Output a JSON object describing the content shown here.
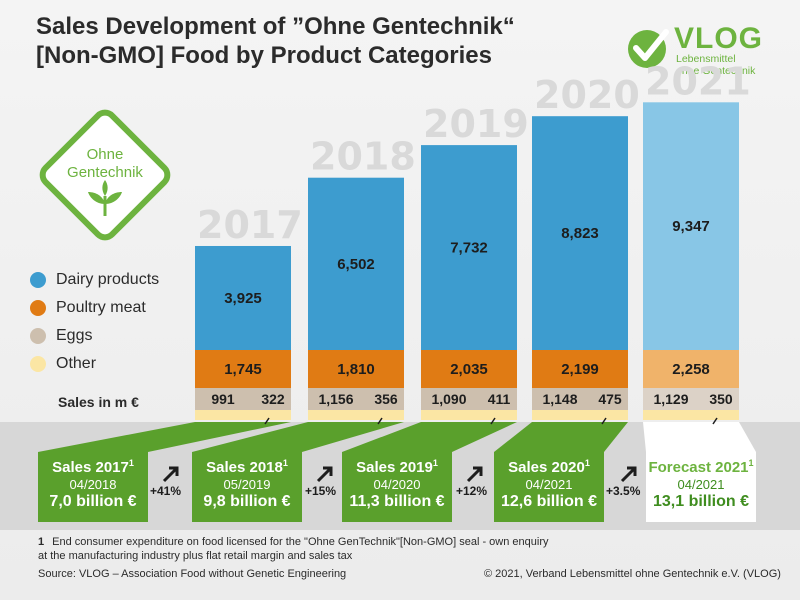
{
  "title": {
    "line1": "Sales Development of ”Ohne Gentechnik“",
    "line2": "[Non-GMO] Food by Product Categories"
  },
  "logo": {
    "name": "VLOG",
    "sub1": "Lebensmittel",
    "sub2": "ohne Gentechnik",
    "icon": "checkmark-icon"
  },
  "seal": {
    "line1": "Ohne",
    "line2": "Gentechnik",
    "icon": "plant-icon"
  },
  "colors": {
    "dairy": "#3d9ccf",
    "dairy_forecast": "#88c6e6",
    "poultry": "#e07b14",
    "poultry_forecast": "#f0b36a",
    "eggs": "#cdbfae",
    "eggs_forecast": "#dcd2c7",
    "other": "#fbe6a4",
    "green": "#5aa02c"
  },
  "unit_label": "Sales in m €",
  "chart_data": {
    "type": "bar",
    "stacked": true,
    "title": "Sales Development of ”Ohne Gentechnik“ [Non-GMO] Food by Product Categories",
    "categories": [
      "2017",
      "2018",
      "2019",
      "2020",
      "2021"
    ],
    "series": [
      {
        "name": "Dairy products",
        "values": [
          3925,
          6502,
          7732,
          8823,
          9347
        ],
        "labels": [
          "3,925",
          "6,502",
          "7,732",
          "8,823",
          "9,347"
        ]
      },
      {
        "name": "Poultry meat",
        "values": [
          1745,
          1810,
          2035,
          2199,
          2258
        ],
        "labels": [
          "1,745",
          "1,810",
          "2,035",
          "2,199",
          "2,258"
        ]
      },
      {
        "name": "Eggs",
        "values": [
          991,
          1156,
          1090,
          1148,
          1129
        ],
        "labels": [
          "991",
          "1,156",
          "1,090",
          "1,148",
          "1,129"
        ]
      },
      {
        "name": "Other",
        "values": [
          322,
          356,
          411,
          475,
          350
        ],
        "labels": [
          "322",
          "356",
          "411",
          "475",
          "350"
        ]
      }
    ],
    "forecast_category": "2021",
    "ylabel": "Sales in m €"
  },
  "sales_boxes": [
    {
      "title": "Sales 2017",
      "sup": "1",
      "date": "04/2018",
      "value": "7,0 billion €"
    },
    {
      "title": "Sales 2018",
      "sup": "1",
      "date": "05/2019",
      "value": "9,8 billion €"
    },
    {
      "title": "Sales 2019",
      "sup": "1",
      "date": "04/2020",
      "value": "11,3 billion €"
    },
    {
      "title": "Sales 2020",
      "sup": "1",
      "date": "04/2021",
      "value": "12,6 billion €"
    },
    {
      "title": "Forecast 2021",
      "sup": "1",
      "date": "04/2021",
      "value": "13,1 billion €"
    }
  ],
  "growth": [
    "+41%",
    "+15%",
    "+12%",
    "+3.5%"
  ],
  "footnote": {
    "marker": "1",
    "text": "End consumer expenditure on food licensed for the \"Ohne GenTechnik\"[Non-GMO] seal - own enquiry at the manufacturing industry plus flat retail margin and sales tax"
  },
  "source": "Source: VLOG – Association Food without Genetic Engineering",
  "copyright": "© 2021, Verband Lebensmittel ohne Gentechnik e.V. (VLOG)"
}
